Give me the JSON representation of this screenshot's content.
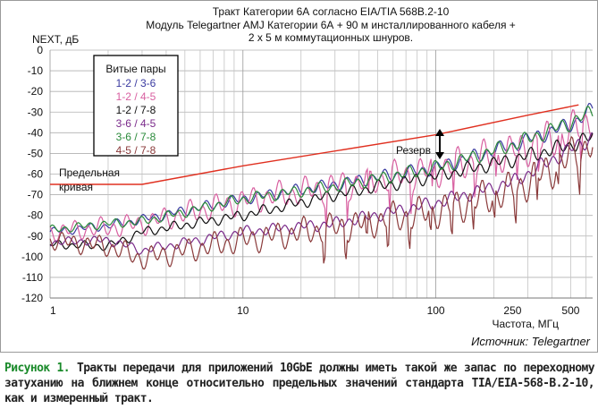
{
  "chart_data": {
    "type": "line",
    "title_lines": [
      "Тракт Категории 6А согласно EIA/TIA 568B.2-10",
      "Модуль Telegartner AMJ Категории 6А + 90 м инсталлированного кабеля +",
      "2 х 5 м коммутационных шнуров."
    ],
    "ylabel": "NEXT, дБ",
    "xlabel": "Частота, МГц",
    "xscale": "log",
    "xlim": [
      1,
      650
    ],
    "ylim": [
      -120,
      0
    ],
    "x_ticks": [
      "1",
      "10",
      "100",
      "250",
      "500"
    ],
    "y_ticks": [
      "0",
      "-10",
      "-20",
      "-30",
      "-40",
      "-50",
      "-60",
      "-70",
      "-80",
      "-90",
      "-100",
      "-110",
      "-120"
    ],
    "legend_title": "Витые пары",
    "legend_position": "top-left",
    "annotations": {
      "limit": [
        "Предельная",
        "кривая"
      ],
      "reserve": "Резерв"
    },
    "source": "Источник: Telegartner",
    "limit_line": {
      "name": "Предельная кривая",
      "color": "#e03020",
      "points": [
        [
          1,
          -65
        ],
        [
          3,
          -65
        ],
        [
          10,
          -56
        ],
        [
          100,
          -41
        ],
        [
          300,
          -31.5
        ],
        [
          550,
          -26.5
        ]
      ]
    },
    "series": [
      {
        "name": "1-2 / 3-6",
        "color": "#3a3aa0",
        "points": [
          [
            1,
            -88
          ],
          [
            2,
            -85
          ],
          [
            3,
            -82
          ],
          [
            10,
            -72
          ],
          [
            30,
            -65
          ],
          [
            100,
            -57
          ],
          [
            250,
            -46
          ],
          [
            500,
            -36
          ],
          [
            650,
            -29
          ]
        ]
      },
      {
        "name": "1-2 / 4-5",
        "color": "#d85fa0",
        "points": [
          [
            1,
            -88
          ],
          [
            2,
            -86
          ],
          [
            3,
            -84
          ],
          [
            10,
            -73
          ],
          [
            30,
            -66
          ],
          [
            100,
            -58
          ],
          [
            250,
            -49
          ],
          [
            500,
            -40
          ],
          [
            650,
            -32
          ]
        ]
      },
      {
        "name": "1-2 / 7-8",
        "color": "#111111",
        "points": [
          [
            1,
            -94
          ],
          [
            2,
            -95
          ],
          [
            3,
            -88
          ],
          [
            10,
            -80
          ],
          [
            30,
            -70
          ],
          [
            100,
            -61
          ],
          [
            250,
            -53
          ],
          [
            500,
            -46
          ],
          [
            650,
            -42
          ]
        ]
      },
      {
        "name": "3-6 / 4-5",
        "color": "#7a2a8a",
        "points": [
          [
            1,
            -93
          ],
          [
            2,
            -92
          ],
          [
            3,
            -97
          ],
          [
            10,
            -88
          ],
          [
            30,
            -84
          ],
          [
            100,
            -74
          ],
          [
            250,
            -64
          ],
          [
            500,
            -48
          ],
          [
            650,
            -42
          ]
        ]
      },
      {
        "name": "3-6 / 7-8",
        "color": "#2a8a3a",
        "points": [
          [
            1,
            -87
          ],
          [
            2,
            -84
          ],
          [
            3,
            -83
          ],
          [
            10,
            -72
          ],
          [
            30,
            -66
          ],
          [
            100,
            -57
          ],
          [
            250,
            -46
          ],
          [
            500,
            -35
          ],
          [
            650,
            -30
          ]
        ]
      },
      {
        "name": "4-5 / 7-8",
        "color": "#8a3a3a",
        "points": [
          [
            1,
            -92
          ],
          [
            2,
            -95
          ],
          [
            3,
            -101
          ],
          [
            10,
            -92
          ],
          [
            30,
            -86
          ],
          [
            100,
            -78
          ],
          [
            250,
            -68
          ],
          [
            500,
            -52
          ],
          [
            650,
            -44
          ]
        ]
      }
    ]
  },
  "caption": {
    "figure_label": "Рисунок 1.",
    "text": " Тракты передачи для приложений 10GbE должны иметь такой же запас по переходному затуханию на ближнем конце относительно предельных значений стандарта TIA/EIA-568-B.2-10, как и измеренный тракт."
  }
}
